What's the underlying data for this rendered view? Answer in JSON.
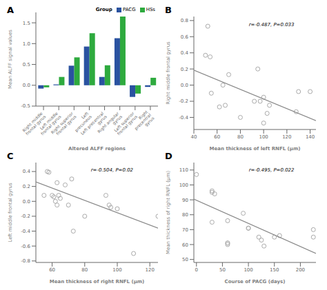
{
  "chart_data": [
    {
      "type": "bar",
      "title": "A",
      "categories": [
        "Right middle\nfrontal gyrus",
        "Left middle\nfrontal gyrus",
        "Right superior\nfrontal gyrus",
        "Left\nprecuneus",
        "Left precentral\ngyrus",
        "Right angular\ngyrus",
        "Left superior\nfrontal gyrus",
        "Right\nprecentral\ngyrus"
      ],
      "series": [
        {
          "name": "PACG",
          "color": "#2a52a0",
          "values": [
            -0.08,
            0.02,
            0.47,
            0.93,
            0.2,
            1.13,
            -0.28,
            -0.04
          ]
        },
        {
          "name": "HSs",
          "color": "#2eaa3e",
          "values": [
            -0.05,
            0.2,
            0.67,
            1.25,
            0.48,
            1.65,
            -0.2,
            0.18
          ]
        }
      ],
      "x_label": "Altered ALFF regions",
      "y_label": "Mean ALFF signal values",
      "ylim": [
        -0.5,
        1.75
      ],
      "yticks": [
        -0.5,
        {
          "value": 0,
          "label": "0.0"
        },
        0.5,
        {
          "value": 1,
          "label": "1.0"
        },
        1.5
      ],
      "legend": "top right",
      "legend_title": "Group"
    },
    {
      "type": "scatter",
      "title": "B",
      "x_label": "Mean thickness of left RNFL (μm)",
      "y_label": "Right middle frontal gyrus",
      "annotation": "r=-0.487, P=0.033",
      "xlim": [
        40,
        145
      ],
      "xticks": [
        40,
        60,
        80,
        100,
        120,
        140
      ],
      "ylim": [
        -0.55,
        0.85
      ],
      "yticks": [
        -0.4,
        -0.2,
        {
          "value": 0,
          "label": "0.0"
        },
        0.2,
        0.4,
        0.6,
        0.8
      ],
      "series": [
        {
          "type": "scatter",
          "marker": "open_circle",
          "color": "#aaaaaa",
          "x": [
            50,
            52,
            54,
            55,
            62,
            65,
            67,
            70,
            80,
            92,
            95,
            97,
            100,
            100,
            103,
            105,
            128,
            130,
            140
          ],
          "values": [
            0.37,
            0.73,
            0.35,
            -0.1,
            -0.27,
            0.0,
            -0.25,
            0.13,
            -0.4,
            -0.2,
            0.2,
            -0.2,
            -0.15,
            -0.47,
            -0.35,
            -0.25,
            -0.33,
            -0.08,
            -0.08
          ]
        },
        {
          "type": "line",
          "line_style": "solid",
          "color": "#888888",
          "x": [
            40,
            145
          ],
          "values": [
            0.185,
            -0.44
          ]
        }
      ]
    },
    {
      "type": "scatter",
      "title": "C",
      "x_label": "Mean thickness of right RNFL (μm)",
      "y_label": "Left middle frontal gyrus",
      "annotation": "r=-0.504, P=0.02",
      "xlim": [
        50,
        125
      ],
      "xticks": [
        60,
        80,
        100,
        120
      ],
      "ylim": [
        -0.82,
        0.52
      ],
      "yticks": [
        -0.8,
        -0.6,
        -0.4,
        -0.2,
        {
          "value": 0,
          "label": "0.0"
        },
        0.2,
        0.4
      ],
      "series": [
        {
          "type": "scatter",
          "marker": "open_circle",
          "color": "#aaaaaa",
          "x": [
            55,
            57,
            58,
            60,
            61,
            62,
            63,
            63,
            64,
            65,
            68,
            70,
            72,
            73,
            80,
            93,
            95,
            96,
            100,
            110,
            125
          ],
          "values": [
            0.08,
            0.4,
            0.39,
            0.08,
            0.06,
            0.0,
            0.25,
            -0.05,
            0.08,
            0.04,
            0.22,
            -0.05,
            0.3,
            -0.4,
            -0.2,
            0.08,
            -0.05,
            -0.08,
            -0.1,
            -0.7,
            -0.2
          ]
        },
        {
          "type": "line",
          "line_style": "solid",
          "color": "#888888",
          "x": [
            50,
            125
          ],
          "values": [
            0.26,
            -0.36
          ]
        }
      ]
    },
    {
      "type": "scatter",
      "title": "D",
      "x_label": "Course of PACG (days)",
      "y_label": "Mean thickness of right RNFL (μm)",
      "annotation": "r=-0.495, P=0.022",
      "xlim": [
        -5,
        230
      ],
      "xticks": [
        0,
        50,
        100,
        150,
        200
      ],
      "ylim": [
        48,
        115
      ],
      "yticks": [
        50,
        60,
        70,
        80,
        90,
        100,
        110
      ],
      "series": [
        {
          "type": "scatter",
          "marker": "open_circle",
          "color": "#aaaaaa",
          "x": [
            0,
            30,
            30,
            30,
            35,
            60,
            60,
            60,
            60,
            90,
            100,
            100,
            120,
            125,
            130,
            150,
            160,
            225,
            225
          ],
          "values": [
            107,
            96,
            95,
            75,
            94,
            61,
            61,
            60,
            76,
            81,
            71,
            71,
            65,
            63,
            59,
            65,
            66,
            70,
            65
          ]
        },
        {
          "type": "line",
          "line_style": "solid",
          "color": "#888888",
          "x": [
            -5,
            230
          ],
          "values": [
            90.5,
            54.0
          ]
        }
      ]
    }
  ]
}
